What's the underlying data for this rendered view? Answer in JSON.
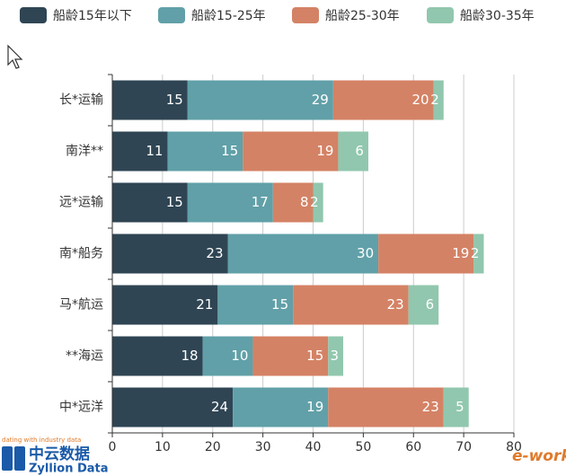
{
  "chart_data": {
    "type": "bar",
    "orientation": "horizontal",
    "stacked": true,
    "categories": [
      "长*运输",
      "南洋**",
      "远*运输",
      "南*船务",
      "马*航运",
      "**海运",
      "中*远洋"
    ],
    "series": [
      {
        "name": "船龄15年以下",
        "color": "#2f4554",
        "values": [
          15,
          11,
          15,
          23,
          21,
          18,
          24
        ]
      },
      {
        "name": "船龄15-25年",
        "color": "#61a0a8",
        "values": [
          29,
          15,
          17,
          30,
          15,
          10,
          19
        ]
      },
      {
        "name": "船龄25-30年",
        "color": "#d48265",
        "values": [
          20,
          19,
          8,
          19,
          23,
          15,
          23
        ]
      },
      {
        "name": "船龄30-35年",
        "color": "#91c7ae",
        "values": [
          2,
          6,
          2,
          2,
          6,
          3,
          5
        ]
      }
    ],
    "xlim": [
      0,
      80
    ],
    "xticks": [
      0,
      10,
      20,
      30,
      40,
      50,
      60,
      70,
      80
    ],
    "grid": true,
    "legend": "top"
  },
  "watermarks": {
    "tagline": "dating with industry data",
    "brand_cn": "中云数据",
    "brand_en": "Zyllion Data",
    "site": "e-works"
  }
}
